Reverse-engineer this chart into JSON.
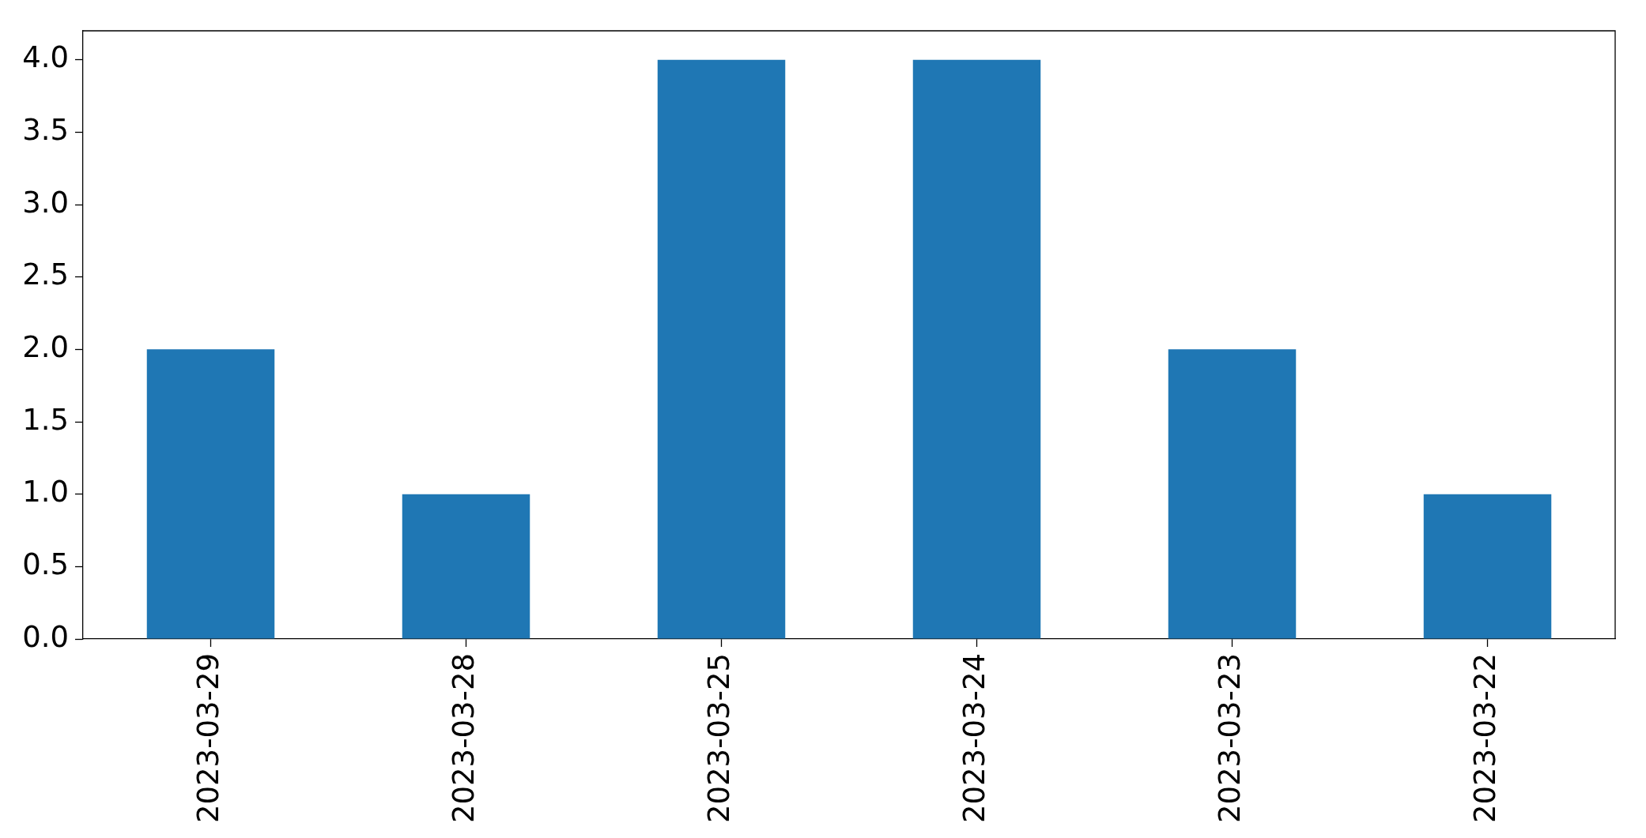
{
  "chart_data": {
    "type": "bar",
    "categories": [
      "2023-03-29",
      "2023-03-28",
      "2023-03-25",
      "2023-03-24",
      "2023-03-23",
      "2023-03-22"
    ],
    "values": [
      2,
      1,
      4,
      4,
      2,
      1
    ],
    "color": "#1f77b4",
    "ylim": [
      0,
      4.2
    ],
    "yticks": [
      {
        "value": 0,
        "label": "0.0"
      },
      {
        "value": 0.5,
        "label": "0.5"
      },
      {
        "value": 1,
        "label": "1.0"
      },
      {
        "value": 1.5,
        "label": "1.5"
      },
      {
        "value": 2,
        "label": "2.0"
      },
      {
        "value": 2.5,
        "label": "2.5"
      },
      {
        "value": 3,
        "label": "3.0"
      },
      {
        "value": 3.5,
        "label": "3.5"
      },
      {
        "value": 4,
        "label": "4.0"
      }
    ]
  }
}
